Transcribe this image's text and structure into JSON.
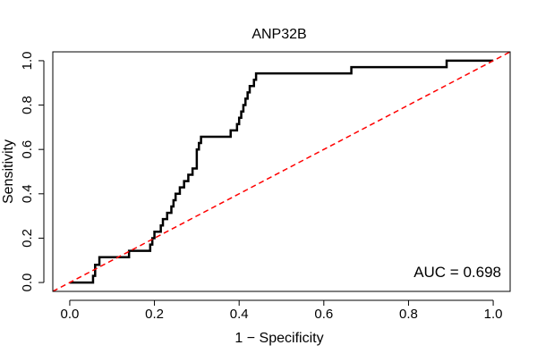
{
  "chart_data": {
    "type": "line",
    "title": "ANP32B",
    "xlabel": "1 − Specificity",
    "ylabel": "Sensitivity",
    "xlim": [
      -0.04,
      1.04
    ],
    "ylim": [
      -0.04,
      1.04
    ],
    "x_ticks": [
      0.0,
      0.2,
      0.4,
      0.6,
      0.8,
      1.0
    ],
    "x_tick_labels": [
      "0.0",
      "0.2",
      "0.4",
      "0.6",
      "0.8",
      "1.0"
    ],
    "y_ticks": [
      0.0,
      0.2,
      0.4,
      0.6,
      0.8,
      1.0
    ],
    "y_tick_labels": [
      "0.0",
      "0.2",
      "0.4",
      "0.6",
      "0.8",
      "1.0"
    ],
    "grid": false,
    "annotation": "AUC = 0.698",
    "series": [
      {
        "color": "#000000",
        "style": "solid",
        "points": [
          [
            0.0,
            0.0
          ],
          [
            0.055,
            0.0
          ],
          [
            0.055,
            0.03
          ],
          [
            0.06,
            0.03
          ],
          [
            0.06,
            0.08
          ],
          [
            0.07,
            0.08
          ],
          [
            0.07,
            0.114
          ],
          [
            0.14,
            0.114
          ],
          [
            0.14,
            0.143
          ],
          [
            0.19,
            0.143
          ],
          [
            0.19,
            0.171
          ],
          [
            0.195,
            0.171
          ],
          [
            0.195,
            0.2
          ],
          [
            0.2,
            0.2
          ],
          [
            0.2,
            0.229
          ],
          [
            0.215,
            0.229
          ],
          [
            0.215,
            0.257
          ],
          [
            0.22,
            0.257
          ],
          [
            0.22,
            0.286
          ],
          [
            0.23,
            0.286
          ],
          [
            0.23,
            0.314
          ],
          [
            0.24,
            0.314
          ],
          [
            0.24,
            0.343
          ],
          [
            0.245,
            0.343
          ],
          [
            0.245,
            0.371
          ],
          [
            0.25,
            0.371
          ],
          [
            0.25,
            0.4
          ],
          [
            0.26,
            0.4
          ],
          [
            0.26,
            0.429
          ],
          [
            0.27,
            0.429
          ],
          [
            0.27,
            0.457
          ],
          [
            0.28,
            0.457
          ],
          [
            0.28,
            0.486
          ],
          [
            0.29,
            0.486
          ],
          [
            0.29,
            0.514
          ],
          [
            0.3,
            0.514
          ],
          [
            0.3,
            0.6
          ],
          [
            0.305,
            0.6
          ],
          [
            0.305,
            0.629
          ],
          [
            0.31,
            0.629
          ],
          [
            0.31,
            0.657
          ],
          [
            0.38,
            0.657
          ],
          [
            0.38,
            0.686
          ],
          [
            0.395,
            0.686
          ],
          [
            0.395,
            0.714
          ],
          [
            0.4,
            0.714
          ],
          [
            0.4,
            0.743
          ],
          [
            0.405,
            0.743
          ],
          [
            0.405,
            0.771
          ],
          [
            0.41,
            0.771
          ],
          [
            0.41,
            0.8
          ],
          [
            0.415,
            0.8
          ],
          [
            0.415,
            0.829
          ],
          [
            0.42,
            0.829
          ],
          [
            0.42,
            0.857
          ],
          [
            0.425,
            0.857
          ],
          [
            0.425,
            0.886
          ],
          [
            0.435,
            0.886
          ],
          [
            0.435,
            0.914
          ],
          [
            0.44,
            0.914
          ],
          [
            0.44,
            0.943
          ],
          [
            0.665,
            0.943
          ],
          [
            0.665,
            0.971
          ],
          [
            0.89,
            0.971
          ],
          [
            0.89,
            1.0
          ],
          [
            1.0,
            1.0
          ]
        ]
      },
      {
        "color": "#ff0000",
        "style": "dashed",
        "points": [
          [
            -0.04,
            -0.04
          ],
          [
            1.04,
            1.04
          ]
        ]
      }
    ]
  }
}
